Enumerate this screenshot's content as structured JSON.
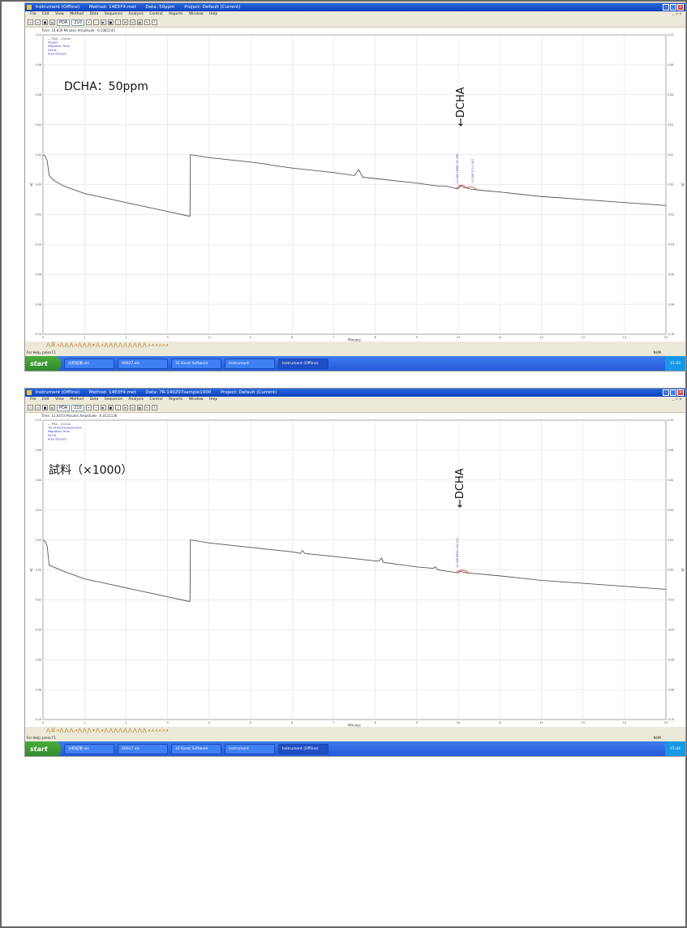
{
  "panels": [
    {
      "window_title": {
        "app": "Instrument (Offline)",
        "method": "Method: 14EXF4.met",
        "data": "Data: 50ppm",
        "project": "Project: Default (Current)"
      },
      "status_line": "Time: 14.839 Minutes   Amplitude: -0.0381143",
      "legend": [
        "PDA - 214nm",
        "50ppm",
        "Migration Time",
        "DCHA",
        "Area Percent"
      ],
      "annotation_label": "DCHA：50ppm",
      "dcha_arrow": "←DCHA",
      "peak_labels": [
        "10.028 19887 35.069",
        "10.299 373 1.457"
      ],
      "chart_data": {
        "type": "line",
        "xlabel": "Minutes",
        "ylabel": "V",
        "x_ticks": [
          0,
          1,
          2,
          3,
          4,
          5,
          6,
          7,
          8,
          9,
          10,
          11,
          12,
          13,
          14,
          15
        ],
        "y_ticks": [
          0.1,
          0.08,
          0.06,
          0.04,
          0.02,
          0.0,
          -0.02,
          -0.04,
          -0.06,
          -0.08,
          -0.1
        ],
        "xlim": [
          0,
          15
        ],
        "ylim": [
          -0.1,
          0.1
        ],
        "grid": true,
        "trace": [
          [
            0.0,
            0.02
          ],
          [
            0.05,
            0.019
          ],
          [
            0.1,
            0.016
          ],
          [
            0.15,
            0.006
          ],
          [
            0.25,
            0.003
          ],
          [
            0.5,
            -0.001
          ],
          [
            1.0,
            -0.006
          ],
          [
            1.5,
            -0.009
          ],
          [
            2.0,
            -0.012
          ],
          [
            2.5,
            -0.015
          ],
          [
            3.0,
            -0.018
          ],
          [
            3.5,
            -0.021
          ],
          [
            3.54,
            -0.021
          ],
          [
            3.55,
            0.02
          ],
          [
            4.0,
            0.018
          ],
          [
            5.0,
            0.015
          ],
          [
            5.3,
            0.014
          ],
          [
            5.5,
            0.013
          ],
          [
            6.0,
            0.011
          ],
          [
            7.0,
            0.008
          ],
          [
            7.5,
            0.006
          ],
          [
            7.6,
            0.01
          ],
          [
            7.7,
            0.005
          ],
          [
            8.0,
            0.004
          ],
          [
            9.0,
            0.001
          ],
          [
            9.5,
            -0.001
          ],
          [
            9.7,
            -0.001
          ],
          [
            10.0,
            -0.003
          ],
          [
            10.05,
            -0.001
          ],
          [
            10.15,
            -0.002
          ],
          [
            10.3,
            -0.003
          ],
          [
            10.6,
            -0.004
          ],
          [
            11.0,
            -0.005
          ],
          [
            12.0,
            -0.008
          ],
          [
            13.0,
            -0.01
          ],
          [
            14.0,
            -0.012
          ],
          [
            15.0,
            -0.014
          ]
        ],
        "peak_segments": [
          [
            9.95,
            10.2
          ],
          [
            10.2,
            10.45
          ]
        ]
      },
      "marker_bar": "⋀☰⩘⋀⋀⋀⩘⋀⋀⋀⩔⋀⩘⋀⋀⋀⋀⋀⋀⋀⋀⋀⩘⩘⩘⩘⩘⩘",
      "help_text": "For Help, press F1",
      "status_mode": "NUM",
      "taskbar": {
        "start": "start",
        "items": [
          "分析結果.xls",
          "00027.xls",
          "32 Karat Software",
          "Instrument",
          "Instrument (Offline)"
        ],
        "tray": "15:43"
      }
    },
    {
      "window_title": {
        "app": "Instrument (Offline)",
        "method": "Method: 14EXF4.met",
        "data": "Data: 7R-140207sample1000",
        "project": "Project: Default (Current)"
      },
      "status_line": "Time: 11.6473 Minutes   Amplitude: -0.0121130",
      "legend": [
        "PDA - 214nm",
        "7R-140207sample1000",
        "Migration Time",
        "DCHA",
        "Area Percent"
      ],
      "annotation_label": "試料（×1000）",
      "dcha_arrow": "←DCHA",
      "peak_labels": [
        "10.028 8994 100.000"
      ],
      "chart_data": {
        "type": "line",
        "xlabel": "Minutes",
        "ylabel": "V",
        "x_ticks": [
          0,
          1,
          2,
          3,
          4,
          5,
          6,
          7,
          8,
          9,
          10,
          11,
          12,
          13,
          14,
          15
        ],
        "y_ticks": [
          0.1,
          0.08,
          0.06,
          0.04,
          0.02,
          0.0,
          -0.02,
          -0.04,
          -0.06,
          -0.08,
          -0.1
        ],
        "xlim": [
          0,
          15
        ],
        "ylim": [
          -0.1,
          0.1
        ],
        "grid": true,
        "trace": [
          [
            0.0,
            0.02
          ],
          [
            0.05,
            0.019
          ],
          [
            0.1,
            0.016
          ],
          [
            0.15,
            0.003
          ],
          [
            0.25,
            0.002
          ],
          [
            0.5,
            -0.001
          ],
          [
            1.0,
            -0.006
          ],
          [
            1.5,
            -0.009
          ],
          [
            2.0,
            -0.012
          ],
          [
            2.5,
            -0.015
          ],
          [
            3.0,
            -0.018
          ],
          [
            3.5,
            -0.021
          ],
          [
            3.54,
            -0.021
          ],
          [
            3.55,
            0.02
          ],
          [
            4.0,
            0.018
          ],
          [
            5.0,
            0.015
          ],
          [
            6.0,
            0.012
          ],
          [
            6.2,
            0.011
          ],
          [
            6.25,
            0.013
          ],
          [
            6.3,
            0.011
          ],
          [
            7.0,
            0.009
          ],
          [
            8.0,
            0.006
          ],
          [
            8.1,
            0.006
          ],
          [
            8.15,
            0.008
          ],
          [
            8.2,
            0.005
          ],
          [
            9.0,
            0.002
          ],
          [
            9.4,
            0.001
          ],
          [
            9.45,
            0.002
          ],
          [
            9.5,
            0.0
          ],
          [
            10.0,
            -0.002
          ],
          [
            10.05,
            -0.001
          ],
          [
            10.2,
            -0.002
          ],
          [
            11.0,
            -0.004
          ],
          [
            12.0,
            -0.007
          ],
          [
            13.0,
            -0.009
          ],
          [
            14.0,
            -0.011
          ],
          [
            15.0,
            -0.013
          ]
        ],
        "peak_segments": [
          [
            9.95,
            10.25
          ]
        ]
      },
      "marker_bar": "⋀☰⩘⋀⋀⋀⩘⋀⋀⋀⩔⋀⩘⋀⋀⋀⋀⋀⋀⋀⋀⋀⩘⩘⩘⩘⩘⩘",
      "help_text": "For Help, press F1",
      "status_mode": "NUM",
      "taskbar": {
        "start": "start",
        "items": [
          "分析結果.xls",
          "00027.xls",
          "32 Karat Software",
          "Instrument",
          "Instrument (Offline)"
        ],
        "tray": "15:44"
      }
    }
  ],
  "menu": [
    "File",
    "Edit",
    "View",
    "Method",
    "Data",
    "Sequence",
    "Analysis",
    "Control",
    "Reports",
    "Window",
    "Help"
  ],
  "toolbar": {
    "channel_combo": "PDA",
    "wavelength_combo": "210"
  },
  "colors": {
    "trace": "#555555",
    "peak": "#e04a3a",
    "peak_label": "#2b3fd0",
    "legend_text": "#3a3ab8",
    "grid": "#d9d9d9",
    "axis": "#555555"
  }
}
